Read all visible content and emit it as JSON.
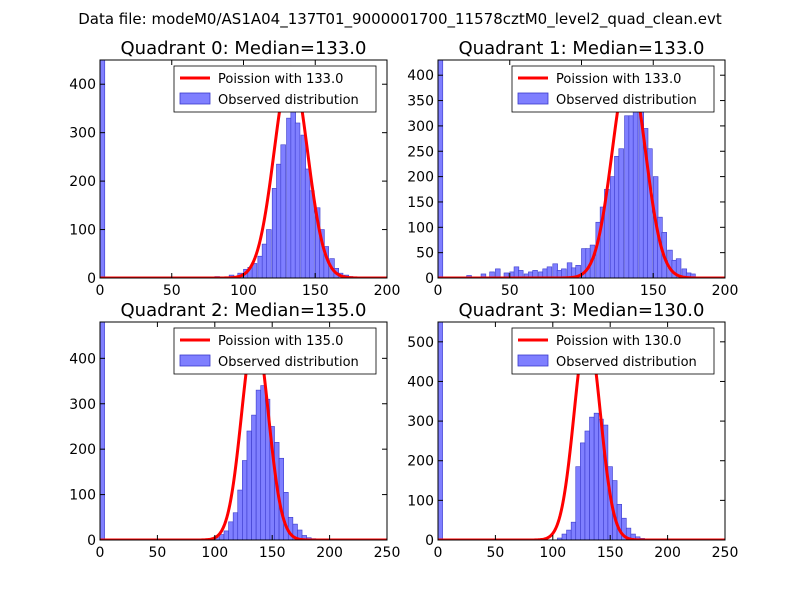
{
  "suptitle": "Data file: modeM0/AS1A04_137T01_9000001700_11578cztM0_level2_quad_clean.evt",
  "colors": {
    "bar": "#7f7fff",
    "bar_edge": "#3a3acc",
    "line": "#ff0000",
    "axis": "#000000"
  },
  "chart_data": [
    {
      "type": "bar",
      "title": "Quadrant 0: Median=133.0",
      "legend": [
        "Poission with 133.0",
        "Observed distribution"
      ],
      "legend_loc": "upper-right",
      "xlim": [
        0,
        200
      ],
      "ylim": [
        0,
        450
      ],
      "xticks": [
        0,
        50,
        100,
        150,
        200
      ],
      "yticks": [
        0,
        100,
        200,
        300,
        400
      ],
      "bin_width": 3.33,
      "bins": [
        [
          0,
          450
        ],
        [
          80,
          3
        ],
        [
          90,
          6
        ],
        [
          96,
          10
        ],
        [
          100,
          18
        ],
        [
          103,
          22
        ],
        [
          106,
          30
        ],
        [
          110,
          45
        ],
        [
          113,
          70
        ],
        [
          116,
          100
        ],
        [
          120,
          185
        ],
        [
          123,
          235
        ],
        [
          126,
          275
        ],
        [
          130,
          330
        ],
        [
          133,
          350
        ],
        [
          136,
          320
        ],
        [
          140,
          295
        ],
        [
          143,
          225
        ],
        [
          146,
          180
        ],
        [
          150,
          145
        ],
        [
          153,
          100
        ],
        [
          156,
          65
        ],
        [
          160,
          40
        ],
        [
          163,
          20
        ],
        [
          166,
          10
        ],
        [
          170,
          6
        ],
        [
          173,
          3
        ]
      ],
      "poisson_mean": 133.0,
      "poisson_amp": 435
    },
    {
      "type": "bar",
      "title": "Quadrant 1: Median=133.0",
      "legend": [
        "Poission with 133.0",
        "Observed distribution"
      ],
      "legend_loc": "upper-right",
      "xlim": [
        0,
        200
      ],
      "ylim": [
        0,
        430
      ],
      "xticks": [
        0,
        50,
        100,
        150,
        200
      ],
      "yticks": [
        0,
        50,
        100,
        150,
        200,
        250,
        300,
        350,
        400
      ],
      "bin_width": 3.33,
      "bins": [
        [
          0,
          430
        ],
        [
          20,
          5
        ],
        [
          30,
          8
        ],
        [
          36,
          12
        ],
        [
          40,
          18
        ],
        [
          46,
          10
        ],
        [
          50,
          12
        ],
        [
          53,
          22
        ],
        [
          56,
          15
        ],
        [
          60,
          8
        ],
        [
          63,
          12
        ],
        [
          66,
          15
        ],
        [
          70,
          12
        ],
        [
          73,
          18
        ],
        [
          76,
          22
        ],
        [
          80,
          28
        ],
        [
          83,
          15
        ],
        [
          86,
          18
        ],
        [
          90,
          30
        ],
        [
          93,
          20
        ],
        [
          96,
          25
        ],
        [
          100,
          58
        ],
        [
          103,
          58
        ],
        [
          106,
          65
        ],
        [
          110,
          110
        ],
        [
          113,
          140
        ],
        [
          116,
          175
        ],
        [
          120,
          200
        ],
        [
          123,
          240
        ],
        [
          126,
          255
        ],
        [
          130,
          320
        ],
        [
          133,
          320
        ],
        [
          136,
          360
        ],
        [
          140,
          330
        ],
        [
          143,
          295
        ],
        [
          146,
          255
        ],
        [
          150,
          200
        ],
        [
          153,
          120
        ],
        [
          156,
          90
        ],
        [
          160,
          55
        ],
        [
          163,
          35
        ],
        [
          166,
          38
        ],
        [
          170,
          18
        ],
        [
          173,
          10
        ],
        [
          176,
          8
        ]
      ],
      "poisson_mean": 133.0,
      "poisson_amp": 415
    },
    {
      "type": "bar",
      "title": "Quadrant 2: Median=135.0",
      "legend": [
        "Poission with 135.0",
        "Observed distribution"
      ],
      "legend_loc": "upper-right",
      "xlim": [
        0,
        250
      ],
      "ylim": [
        0,
        480
      ],
      "xticks": [
        0,
        50,
        100,
        150,
        200,
        250
      ],
      "yticks": [
        0,
        100,
        200,
        300,
        400
      ],
      "bin_width": 4,
      "bins": [
        [
          0,
          480
        ],
        [
          100,
          5
        ],
        [
          104,
          12
        ],
        [
          108,
          20
        ],
        [
          112,
          40
        ],
        [
          116,
          60
        ],
        [
          120,
          110
        ],
        [
          124,
          175
        ],
        [
          128,
          240
        ],
        [
          132,
          275
        ],
        [
          136,
          330
        ],
        [
          140,
          340
        ],
        [
          144,
          310
        ],
        [
          148,
          250
        ],
        [
          152,
          215
        ],
        [
          156,
          180
        ],
        [
          160,
          105
        ],
        [
          164,
          50
        ],
        [
          168,
          35
        ],
        [
          172,
          22
        ],
        [
          176,
          10
        ],
        [
          180,
          5
        ],
        [
          184,
          3
        ]
      ],
      "poisson_mean": 135.0,
      "poisson_amp": 460
    },
    {
      "type": "bar",
      "title": "Quadrant 3: Median=130.0",
      "legend": [
        "Poission with 130.0",
        "Observed distribution"
      ],
      "legend_loc": "upper-right",
      "xlim": [
        0,
        250
      ],
      "ylim": [
        0,
        550
      ],
      "xticks": [
        0,
        50,
        100,
        150,
        200,
        250
      ],
      "yticks": [
        0,
        100,
        200,
        300,
        400,
        500
      ],
      "bin_width": 4,
      "bins": [
        [
          0,
          550
        ],
        [
          104,
          5
        ],
        [
          108,
          15
        ],
        [
          112,
          25
        ],
        [
          116,
          45
        ],
        [
          120,
          185
        ],
        [
          124,
          245
        ],
        [
          128,
          275
        ],
        [
          132,
          310
        ],
        [
          136,
          320
        ],
        [
          140,
          305
        ],
        [
          144,
          290
        ],
        [
          148,
          185
        ],
        [
          152,
          150
        ],
        [
          156,
          90
        ],
        [
          160,
          55
        ],
        [
          164,
          30
        ],
        [
          168,
          15
        ],
        [
          172,
          8
        ],
        [
          176,
          4
        ]
      ],
      "poisson_mean": 130.0,
      "poisson_amp": 530
    }
  ]
}
